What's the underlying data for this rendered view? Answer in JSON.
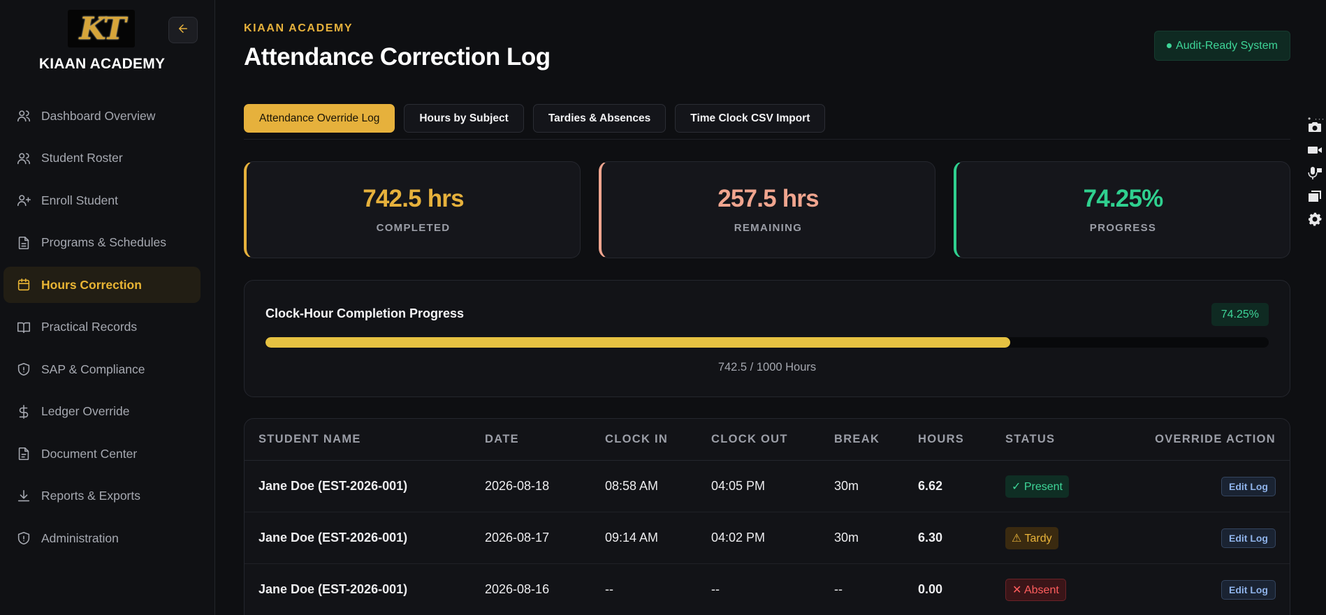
{
  "brand": {
    "logo_text": "KT",
    "name": "KIAAN ACADEMY"
  },
  "sidebar": {
    "items": [
      {
        "label": "Dashboard Overview",
        "icon": "users-icon"
      },
      {
        "label": "Student Roster",
        "icon": "users-icon"
      },
      {
        "label": "Enroll Student",
        "icon": "user-plus-icon"
      },
      {
        "label": "Programs & Schedules",
        "icon": "file-icon"
      },
      {
        "label": "Hours Correction",
        "icon": "calendar-icon",
        "active": true
      },
      {
        "label": "Practical Records",
        "icon": "book-icon"
      },
      {
        "label": "SAP & Compliance",
        "icon": "shield-icon"
      },
      {
        "label": "Ledger Override",
        "icon": "dollar-icon"
      },
      {
        "label": "Document Center",
        "icon": "document-icon"
      },
      {
        "label": "Reports & Exports",
        "icon": "download-icon"
      },
      {
        "label": "Administration",
        "icon": "shield-icon"
      }
    ]
  },
  "header": {
    "eyebrow": "KIAAN ACADEMY",
    "title": "Attendance Correction Log",
    "badge": "Audit-Ready System"
  },
  "tabs": [
    {
      "label": "Attendance Override Log",
      "active": true
    },
    {
      "label": "Hours by Subject"
    },
    {
      "label": "Tardies & Absences"
    },
    {
      "label": "Time Clock CSV Import"
    }
  ],
  "stats": [
    {
      "value": "742.5 hrs",
      "label": "COMPLETED"
    },
    {
      "value": "257.5 hrs",
      "label": "REMAINING"
    },
    {
      "value": "74.25%",
      "label": "PROGRESS"
    }
  ],
  "progress": {
    "title": "Clock-Hour Completion Progress",
    "badge": "74.25%",
    "fraction": 0.7425,
    "caption": "742.5 / 1000 Hours"
  },
  "table": {
    "headers": [
      "STUDENT NAME",
      "DATE",
      "CLOCK IN",
      "CLOCK OUT",
      "BREAK",
      "HOURS",
      "STATUS",
      "OVERRIDE ACTION"
    ],
    "rows": [
      {
        "name": "Jane Doe (EST-2026-001)",
        "date": "2026-08-18",
        "clock_in": "08:58 AM",
        "clock_out": "04:05 PM",
        "break": "30m",
        "hours": "6.62",
        "status": "✓ Present",
        "status_type": "present",
        "action": "Edit Log"
      },
      {
        "name": "Jane Doe (EST-2026-001)",
        "date": "2026-08-17",
        "clock_in": "09:14 AM",
        "clock_out": "04:02 PM",
        "break": "30m",
        "hours": "6.30",
        "status": "⚠ Tardy",
        "status_type": "tardy",
        "action": "Edit Log"
      },
      {
        "name": "Jane Doe (EST-2026-001)",
        "date": "2026-08-16",
        "clock_in": "--",
        "clock_out": "--",
        "break": "--",
        "hours": "0.00",
        "status": "✕ Absent",
        "status_type": "absent",
        "action": "Edit Log"
      }
    ]
  },
  "toolbar": {
    "tools": [
      "camera-icon",
      "video-icon",
      "microphone-icon",
      "window-icon",
      "settings-icon"
    ]
  },
  "colors": {
    "accent": "#e6b13c",
    "remaining": "#f0a58f",
    "success": "#2fd08f",
    "background": "#0e0f12"
  }
}
